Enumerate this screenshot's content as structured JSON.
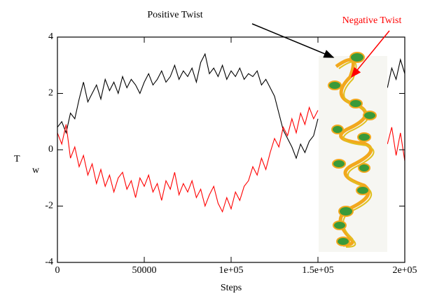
{
  "chart_data": {
    "type": "line",
    "xlabel": "Steps",
    "ylabel": "T",
    "ylabel_subscript": "w",
    "annotations": [
      {
        "text": "Positive Twist",
        "color": "#000000"
      },
      {
        "text": "Negative Twist",
        "color": "#ff0000"
      }
    ],
    "x": [
      0,
      2500,
      5000,
      7500,
      10000,
      12500,
      15000,
      17500,
      20000,
      22500,
      25000,
      27500,
      30000,
      32500,
      35000,
      37500,
      40000,
      42500,
      45000,
      47500,
      50000,
      52500,
      55000,
      57500,
      60000,
      62500,
      65000,
      67500,
      70000,
      72500,
      75000,
      77500,
      80000,
      82500,
      85000,
      87500,
      90000,
      92500,
      95000,
      97500,
      100000,
      102500,
      105000,
      107500,
      110000,
      112500,
      115000,
      117500,
      120000,
      122500,
      125000,
      127500,
      130000,
      132500,
      135000,
      137500,
      140000,
      142500,
      145000,
      147500,
      150000,
      152500,
      155000,
      157500,
      160000,
      162500,
      165000,
      167500,
      170000,
      172500,
      175000,
      177500,
      180000,
      182500,
      185000,
      187500,
      190000,
      192500,
      195000,
      197500,
      200000
    ],
    "series": [
      {
        "name": "Positive Twist",
        "color": "#000000",
        "values": [
          0.8,
          1.0,
          0.6,
          1.3,
          1.1,
          1.8,
          2.4,
          1.7,
          2.0,
          2.3,
          1.8,
          2.5,
          2.1,
          2.4,
          2.0,
          2.6,
          2.2,
          2.5,
          2.3,
          2.0,
          2.4,
          2.7,
          2.3,
          2.5,
          2.8,
          2.4,
          2.6,
          3.0,
          2.5,
          2.8,
          2.6,
          2.9,
          2.4,
          3.1,
          3.4,
          2.7,
          2.9,
          2.6,
          3.0,
          2.5,
          2.8,
          2.6,
          2.9,
          2.5,
          2.7,
          2.6,
          2.8,
          2.3,
          2.5,
          2.2,
          1.9,
          1.3,
          0.7,
          0.4,
          0.1,
          -0.3,
          0.2,
          -0.1,
          0.3,
          0.5,
          1.1,
          null,
          null,
          null,
          null,
          null,
          null,
          null,
          null,
          null,
          null,
          null,
          null,
          null,
          null,
          null,
          2.2,
          2.9,
          2.5,
          3.2,
          2.7
        ]
      },
      {
        "name": "Negative Twist",
        "color": "#ff0000",
        "values": [
          0.6,
          0.2,
          0.9,
          -0.3,
          0.1,
          -0.6,
          -0.2,
          -0.9,
          -0.5,
          -1.2,
          -0.7,
          -1.3,
          -0.9,
          -1.5,
          -1.0,
          -0.8,
          -1.4,
          -1.1,
          -1.7,
          -1.0,
          -1.3,
          -0.9,
          -1.5,
          -1.2,
          -1.8,
          -1.1,
          -1.4,
          -0.8,
          -1.6,
          -1.2,
          -1.5,
          -1.1,
          -1.7,
          -1.4,
          -2.0,
          -1.6,
          -1.3,
          -1.9,
          -2.2,
          -1.7,
          -2.1,
          -1.5,
          -1.8,
          -1.3,
          -1.1,
          -0.6,
          -0.9,
          -0.3,
          -0.7,
          -0.1,
          0.4,
          0.1,
          0.8,
          0.5,
          1.1,
          0.6,
          1.3,
          0.9,
          1.5,
          1.1,
          1.4,
          null,
          null,
          null,
          null,
          null,
          null,
          null,
          null,
          null,
          null,
          null,
          null,
          null,
          null,
          null,
          0.2,
          0.8,
          -0.2,
          0.6,
          -0.4
        ]
      }
    ],
    "xlim": [
      0,
      200000
    ],
    "ylim": [
      -4,
      4
    ],
    "xticks": [
      0,
      50000,
      {
        "value": 100000,
        "label": "1e+05"
      },
      {
        "value": 150000,
        "label": "1.5e+05"
      },
      {
        "value": 200000,
        "label": "2e+05"
      }
    ],
    "yticks": [
      -4,
      -2,
      0,
      2,
      4
    ],
    "grid": false
  }
}
